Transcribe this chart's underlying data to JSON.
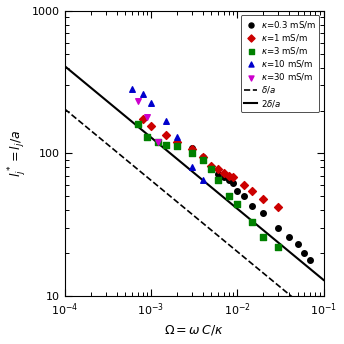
{
  "xlim": [
    0.0001,
    0.1
  ],
  "ylim": [
    10,
    1000
  ],
  "xlabel": "$\\Omega = \\omega\\, C/\\kappa$",
  "ylabel": "$l_j^* = l_j/a$",
  "background_color": "#ffffff",
  "line_dashed_label": "$\\delta/a$",
  "line_solid_label": "$2\\delta/a$",
  "series": [
    {
      "label": "$\\kappa$=0.3 mS/m",
      "color": "black",
      "marker": "o",
      "x": [
        0.003,
        0.004,
        0.005,
        0.006,
        0.007,
        0.008,
        0.009,
        0.01,
        0.012,
        0.015,
        0.02,
        0.03,
        0.04,
        0.05,
        0.06,
        0.07
      ],
      "y": [
        110,
        95,
        80,
        72,
        68,
        65,
        62,
        55,
        50,
        43,
        38,
        30,
        26,
        23,
        20,
        18
      ]
    },
    {
      "label": "$\\kappa$=1 mS/m",
      "color": "#cc0000",
      "marker": "D",
      "x": [
        0.0008,
        0.001,
        0.0015,
        0.002,
        0.003,
        0.004,
        0.005,
        0.006,
        0.007,
        0.008,
        0.009,
        0.012,
        0.015,
        0.02,
        0.03
      ],
      "y": [
        175,
        155,
        135,
        120,
        108,
        95,
        82,
        78,
        73,
        70,
        68,
        60,
        55,
        48,
        42
      ]
    },
    {
      "label": "$\\kappa$=3 mS/m",
      "color": "#008000",
      "marker": "s",
      "x": [
        0.0007,
        0.0009,
        0.0012,
        0.0015,
        0.002,
        0.003,
        0.004,
        0.005,
        0.006,
        0.008,
        0.01,
        0.015,
        0.02,
        0.03
      ],
      "y": [
        160,
        130,
        120,
        115,
        112,
        100,
        90,
        78,
        65,
        50,
        44,
        33,
        26,
        22
      ]
    },
    {
      "label": "$\\kappa$=10 mS/m",
      "color": "#0000cc",
      "marker": "^",
      "x": [
        0.0006,
        0.0008,
        0.001,
        0.0015,
        0.002,
        0.003,
        0.004
      ],
      "y": [
        285,
        260,
        225,
        170,
        130,
        80,
        65
      ]
    },
    {
      "label": "$\\kappa$=30 mS/m",
      "color": "#cc00cc",
      "marker": "v",
      "x": [
        0.0007,
        0.0009,
        0.0012
      ],
      "y": [
        235,
        180,
        120
      ]
    }
  ],
  "slope": -0.5,
  "line_x": [
    0.0001,
    0.1
  ],
  "dashed_intercept": 2.05,
  "solid_intercept": 4.1
}
